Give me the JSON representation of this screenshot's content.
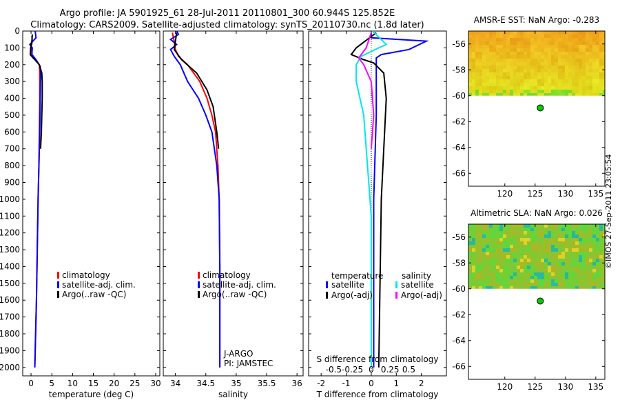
{
  "header": {
    "line1": "Argo profile: JA 5901925_61 28-Jul-2011 20110801_300 60.944S 125.852E",
    "line2": "Climatology: CARS2009. Satellite-adjusted climatology: synTS_20110730.nc (1.8d later)"
  },
  "stamp": "©IMOS 27-Sep-2011 23:05:54",
  "colors": {
    "climatology": "#ff0000",
    "satellite": "#0000ff",
    "argo": "#000000",
    "salinity_satellite": "#00e5ee",
    "salinity_argo": "#ff00ff",
    "dot": "#00cc00"
  },
  "chart_data": [
    {
      "type": "line",
      "id": "temperature",
      "xlabel": "temperature (deg C)",
      "ylabel": "",
      "xlim": [
        -2,
        31
      ],
      "ylim": [
        2050,
        0
      ],
      "xticks": [
        0,
        5,
        10,
        15,
        20,
        25,
        30
      ],
      "yticks": [
        0,
        100,
        200,
        300,
        400,
        500,
        600,
        700,
        800,
        900,
        1000,
        1100,
        1200,
        1300,
        1400,
        1500,
        1600,
        1700,
        1800,
        1900,
        2000
      ],
      "legend": [
        "climatology",
        "satellite-adj. clim.",
        "Argo(..raw -QC)"
      ],
      "series": [
        {
          "name": "climatology",
          "color": "#ff0000",
          "points": [
            [
              0.2,
              30
            ],
            [
              0.3,
              60
            ],
            [
              0.0,
              100
            ],
            [
              0.2,
              140
            ],
            [
              0.8,
              160
            ],
            [
              2.0,
              200
            ],
            [
              2.1,
              250
            ],
            [
              2.1,
              400
            ],
            [
              2.0,
              600
            ],
            [
              1.9,
              800
            ],
            [
              1.7,
              1000
            ],
            [
              1.5,
              1300
            ],
            [
              1.3,
              1600
            ],
            [
              1.1,
              1800
            ],
            [
              0.9,
              2000
            ]
          ]
        },
        {
          "name": "satellite-adj. clim.",
          "color": "#0000ff",
          "points": [
            [
              1.0,
              0
            ],
            [
              1.2,
              40
            ],
            [
              -0.3,
              80
            ],
            [
              0.3,
              100
            ],
            [
              0.2,
              140
            ],
            [
              1.2,
              170
            ],
            [
              2.2,
              210
            ],
            [
              2.3,
              250
            ],
            [
              2.2,
              400
            ],
            [
              2.1,
              600
            ],
            [
              1.9,
              800
            ],
            [
              1.7,
              1000
            ],
            [
              1.5,
              1300
            ],
            [
              1.3,
              1600
            ],
            [
              1.1,
              1800
            ],
            [
              0.9,
              2000
            ]
          ]
        },
        {
          "name": "Argo(..raw -QC)",
          "color": "#000000",
          "points": [
            [
              0.3,
              20
            ],
            [
              0.2,
              60
            ],
            [
              -0.1,
              100
            ],
            [
              -0.2,
              140
            ],
            [
              0.5,
              160
            ],
            [
              2.0,
              200
            ],
            [
              2.6,
              250
            ],
            [
              2.7,
              300
            ],
            [
              2.7,
              400
            ],
            [
              2.5,
              600
            ],
            [
              2.3,
              700
            ]
          ]
        }
      ]
    },
    {
      "type": "line",
      "id": "salinity",
      "xlabel": "salinity",
      "ylabel": "",
      "xlim": [
        33.8,
        36.1
      ],
      "ylim": [
        2050,
        0
      ],
      "xticks": [
        34,
        34.5,
        35,
        35.5,
        36
      ],
      "legend": [
        "climatology",
        "satellite-adj. clim.",
        "Argo(..raw -QC)"
      ],
      "annotations": [
        "J-ARGO",
        "PI: JAMSTEC"
      ],
      "series": [
        {
          "name": "climatology",
          "color": "#ff0000",
          "points": [
            [
              33.95,
              10
            ],
            [
              33.98,
              60
            ],
            [
              34.0,
              110
            ],
            [
              34.05,
              150
            ],
            [
              34.2,
              200
            ],
            [
              34.4,
              300
            ],
            [
              34.52,
              400
            ],
            [
              34.6,
              500
            ],
            [
              34.66,
              600
            ],
            [
              34.7,
              800
            ],
            [
              34.72,
              1000
            ],
            [
              34.73,
              1400
            ],
            [
              34.73,
              2000
            ]
          ]
        },
        {
          "name": "satellite-adj. clim.",
          "color": "#0000ff",
          "points": [
            [
              34.02,
              0
            ],
            [
              34.05,
              20
            ],
            [
              33.92,
              50
            ],
            [
              34.02,
              80
            ],
            [
              33.92,
              110
            ],
            [
              33.98,
              150
            ],
            [
              34.08,
              200
            ],
            [
              34.2,
              300
            ],
            [
              34.38,
              400
            ],
            [
              34.5,
              500
            ],
            [
              34.6,
              600
            ],
            [
              34.68,
              800
            ],
            [
              34.72,
              1000
            ],
            [
              34.73,
              1400
            ],
            [
              34.73,
              2000
            ]
          ]
        },
        {
          "name": "Argo(..raw -QC)",
          "color": "#000000",
          "points": [
            [
              34.02,
              10
            ],
            [
              34.0,
              60
            ],
            [
              33.98,
              110
            ],
            [
              34.1,
              170
            ],
            [
              34.35,
              250
            ],
            [
              34.52,
              350
            ],
            [
              34.62,
              450
            ],
            [
              34.68,
              600
            ],
            [
              34.71,
              700
            ]
          ]
        }
      ]
    },
    {
      "type": "line",
      "id": "difference",
      "xlabel": "T difference from climatology",
      "x2label": "S difference from climatology",
      "xlim": [
        -2.5,
        3.0
      ],
      "ylim": [
        2050,
        0
      ],
      "xticks": [
        -2,
        -1,
        0,
        1,
        2
      ],
      "x2ticks": [
        "-0.5",
        "-0.25",
        "0",
        "0.25",
        "0.5"
      ],
      "legend_t_title": "temperature",
      "legend_s_title": "salinity",
      "legend_t": [
        "satellite",
        "Argo(-adj)"
      ],
      "legend_s": [
        "satellite",
        "Argo(-adj)"
      ],
      "series": [
        {
          "name": "temperature satellite",
          "color": "#0000ff",
          "points": [
            [
              0.0,
              10
            ],
            [
              0.0,
              40
            ],
            [
              2.2,
              60
            ],
            [
              1.5,
              110
            ],
            [
              0.4,
              140
            ],
            [
              0.2,
              160
            ],
            [
              0.2,
              250
            ],
            [
              0.2,
              500
            ],
            [
              0.1,
              1000
            ],
            [
              0.1,
              2000
            ]
          ]
        },
        {
          "name": "temperature Argo(-adj)",
          "color": "#000000",
          "points": [
            [
              0.2,
              10
            ],
            [
              -0.6,
              100
            ],
            [
              -0.8,
              140
            ],
            [
              -0.3,
              170
            ],
            [
              0.1,
              190
            ],
            [
              0.5,
              250
            ],
            [
              0.6,
              400
            ],
            [
              0.5,
              700
            ],
            [
              0.4,
              1000
            ],
            [
              0.3,
              2000
            ]
          ]
        },
        {
          "name": "salinity satellite",
          "color": "#00e5ee",
          "points": [
            [
              0.05,
              0
            ],
            [
              0.4,
              50
            ],
            [
              0.6,
              80
            ],
            [
              0.3,
              100
            ],
            [
              -0.4,
              150
            ],
            [
              -0.6,
              200
            ],
            [
              -0.6,
              300
            ],
            [
              -0.3,
              500
            ],
            [
              0.0,
              1100
            ],
            [
              0.0,
              2000
            ]
          ]
        },
        {
          "name": "salinity Argo(-adj)",
          "color": "#ff00ff",
          "points": [
            [
              0.0,
              10
            ],
            [
              -0.2,
              100
            ],
            [
              -0.5,
              160
            ],
            [
              -0.3,
              200
            ],
            [
              0.0,
              300
            ],
            [
              0.1,
              500
            ],
            [
              0.0,
              700
            ]
          ]
        }
      ]
    },
    {
      "type": "heatmap",
      "id": "sst_map",
      "title": "AMSR-E SST: NaN Argo: -0.283",
      "xlim": [
        114,
        136.5
      ],
      "ylim": [
        -67,
        -55
      ],
      "xticks": [
        120,
        125,
        130,
        135
      ],
      "yticks": [
        -56,
        -58,
        -60,
        -62,
        -64,
        -66
      ],
      "data_bottom_lat": -60,
      "argo_point": {
        "lon": 125.852,
        "lat": -60.944
      }
    },
    {
      "type": "heatmap",
      "id": "sla_map",
      "title": "Altimetric SLA: NaN Argo: 0.026",
      "xlim": [
        114,
        136.5
      ],
      "ylim": [
        -67,
        -55
      ],
      "xticks": [
        120,
        125,
        130,
        135
      ],
      "yticks": [
        -56,
        -58,
        -60,
        -62,
        -64,
        -66
      ],
      "data_bottom_lat": -60,
      "argo_point": {
        "lon": 125.852,
        "lat": -60.944
      }
    }
  ]
}
